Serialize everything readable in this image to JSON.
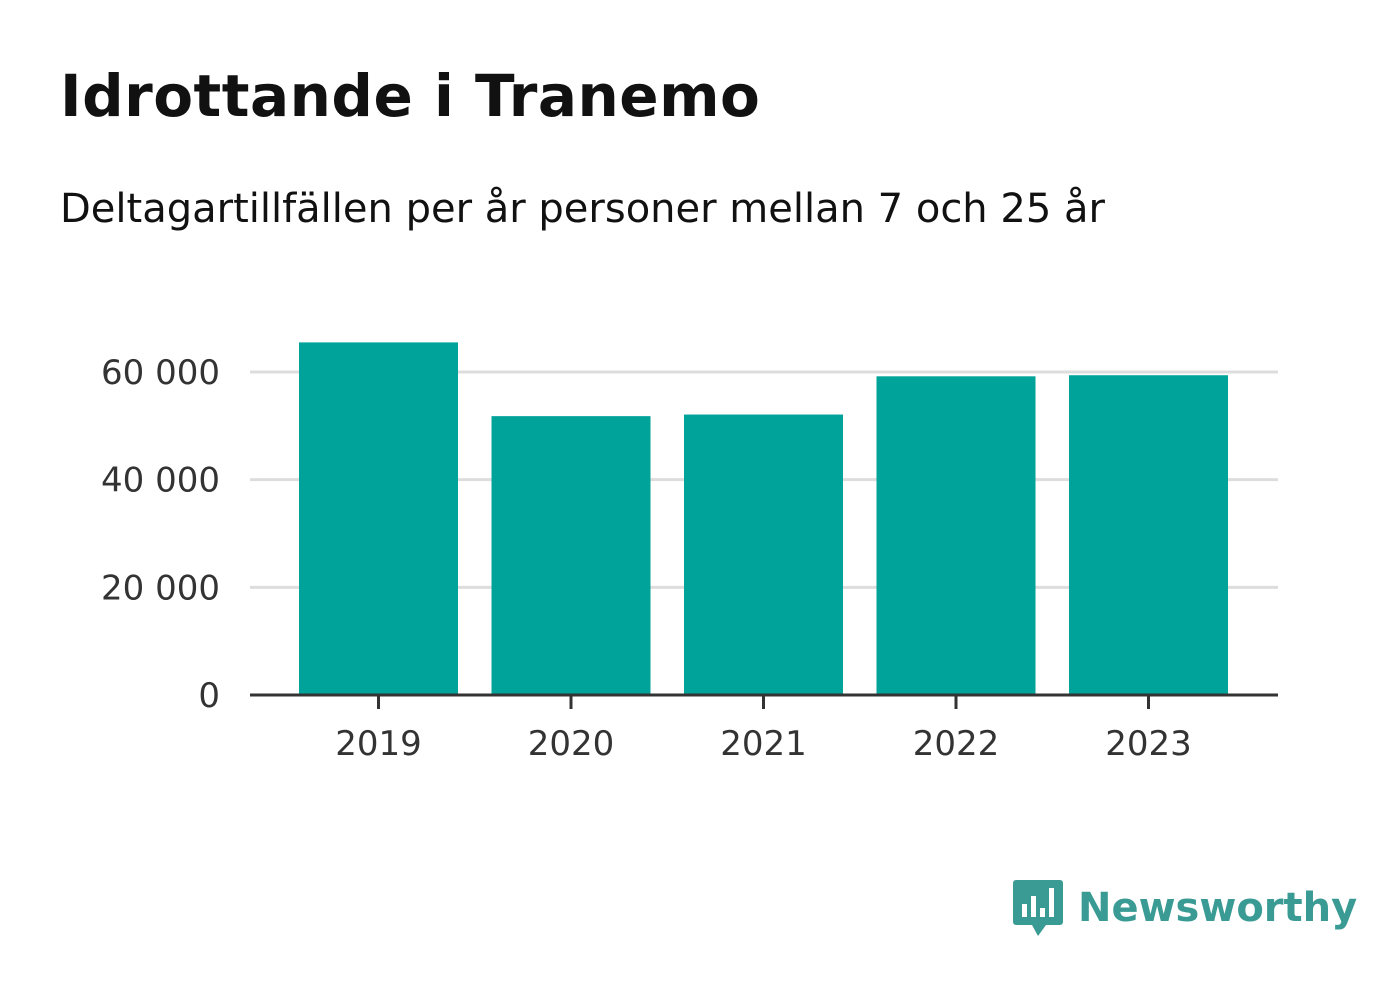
{
  "header": {
    "title": "Idrottande i Tranemo",
    "subtitle": "Deltagartillfällen per år personer mellan 7 och 25 år"
  },
  "brand": {
    "name": "Newsworthy",
    "color": "#3a9b94",
    "icon": "newsworthy-logo-icon"
  },
  "chart_data": {
    "type": "bar",
    "categories": [
      "2019",
      "2020",
      "2021",
      "2022",
      "2023"
    ],
    "values": [
      65500,
      51800,
      52100,
      59200,
      59400
    ],
    "yticks": [
      {
        "value": 0,
        "label": "0"
      },
      {
        "value": 20000,
        "label": "20 000"
      },
      {
        "value": 40000,
        "label": "40 000"
      },
      {
        "value": 60000,
        "label": "60 000"
      }
    ],
    "ylim": [
      0,
      66000
    ],
    "bar_color": "#00a39a",
    "grid_color": "#dddddd",
    "axis_color": "#333333",
    "grid": true
  }
}
